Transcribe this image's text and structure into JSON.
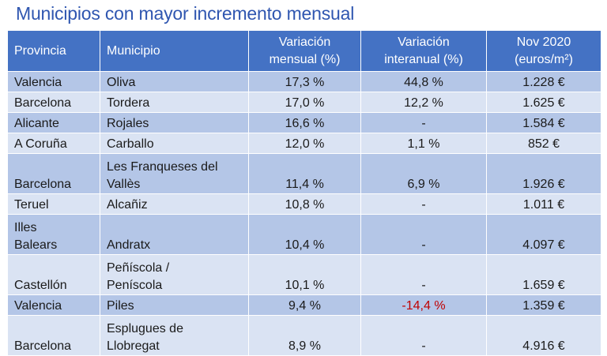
{
  "title": "Municipios con mayor incremento mensual",
  "table": {
    "headers": [
      {
        "lines": [
          "Provincia"
        ]
      },
      {
        "lines": [
          "Municipio"
        ]
      },
      {
        "lines": [
          "Variación",
          "mensual (%)"
        ]
      },
      {
        "lines": [
          "Variación",
          "interanual (%)"
        ]
      },
      {
        "lines": [
          "Nov 2020",
          "(euros/m²)"
        ]
      }
    ],
    "rows": [
      {
        "provincia": [
          "Valencia"
        ],
        "municipio": [
          "Oliva"
        ],
        "mensual": "17,3 %",
        "interanual": "44,8 %",
        "precio": "1.228 €"
      },
      {
        "provincia": [
          "Barcelona"
        ],
        "municipio": [
          "Tordera"
        ],
        "mensual": "17,0 %",
        "interanual": "12,2 %",
        "precio": "1.625 €"
      },
      {
        "provincia": [
          "Alicante"
        ],
        "municipio": [
          "Rojales"
        ],
        "mensual": "16,6 %",
        "interanual": "-",
        "precio": "1.584 €"
      },
      {
        "provincia": [
          "A Coruña"
        ],
        "municipio": [
          "Carballo"
        ],
        "mensual": "12,0 %",
        "interanual": "1,1 %",
        "precio": "852 €"
      },
      {
        "provincia": [
          "Barcelona"
        ],
        "municipio": [
          "Les Franqueses del",
          "Vallès"
        ],
        "mensual": "11,4 %",
        "interanual": "6,9 %",
        "precio": "1.926 €"
      },
      {
        "provincia": [
          "Teruel"
        ],
        "municipio": [
          "Alcañiz"
        ],
        "mensual": "10,8 %",
        "interanual": "-",
        "precio": "1.011 €"
      },
      {
        "provincia": [
          "Illes",
          "Balears"
        ],
        "municipio": [
          "Andratx"
        ],
        "mensual": "10,4 %",
        "interanual": "-",
        "precio": "4.097 €"
      },
      {
        "provincia": [
          "Castellón"
        ],
        "municipio": [
          "Peñíscola /",
          "Peníscola"
        ],
        "mensual": "10,1 %",
        "interanual": "-",
        "precio": "1.659 €"
      },
      {
        "provincia": [
          "Valencia"
        ],
        "municipio": [
          "Piles"
        ],
        "mensual": "9,4 %",
        "interanual": "-14,4 %",
        "precio": "1.359 €",
        "interanual_color": "#c00000"
      },
      {
        "provincia": [
          "Barcelona"
        ],
        "municipio": [
          "Esplugues de",
          "Llobregat"
        ],
        "mensual": "8,9 %",
        "interanual": "-",
        "precio": "4.916 €"
      }
    ]
  },
  "colors": {
    "title": "#2f56b0",
    "header_bg": "#4472c4",
    "row_dark": "#b4c6e7",
    "row_light": "#dae3f3",
    "negative": "#c00000"
  }
}
